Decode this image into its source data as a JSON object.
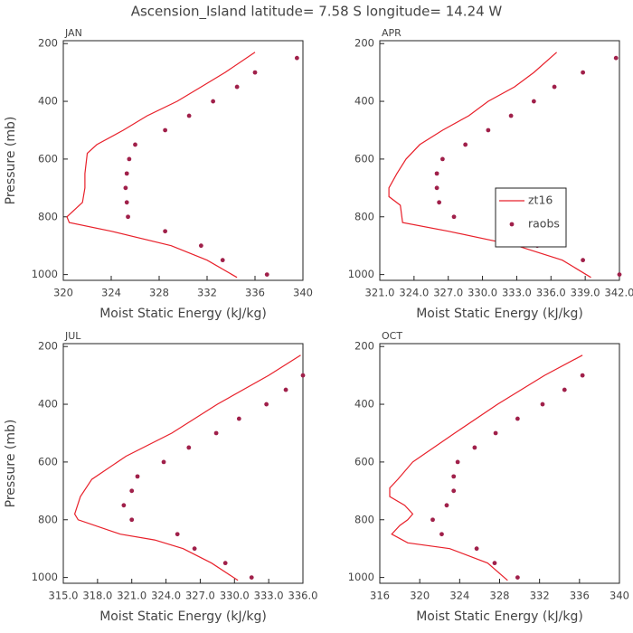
{
  "title": "Ascension_Island  latitude= 7.58 S longitude= 14.24 W",
  "chart_data": [
    {
      "type": "line",
      "title": "JAN",
      "xlabel": "Moist Static Energy (kJ/kg)",
      "ylabel": "Pressure (mb)",
      "xlim": [
        320,
        340
      ],
      "xticks": [
        320,
        324,
        328,
        332,
        336,
        340
      ],
      "ylim": [
        1020,
        190
      ],
      "yticks": [
        200,
        400,
        600,
        800,
        1000
      ],
      "series": [
        {
          "mode": "line",
          "color": "#e8202a",
          "x": [
            336,
            333.5,
            331.5,
            329.5,
            327,
            325,
            322.8,
            322,
            321.8,
            321.8,
            321.6,
            320.3,
            320.5,
            324,
            329,
            332,
            334.5
          ],
          "values": [
            230,
            300,
            350,
            400,
            450,
            500,
            550,
            580,
            650,
            700,
            750,
            800,
            820,
            850,
            900,
            950,
            1010
          ]
        },
        {
          "mode": "markers",
          "color": "#a0204a",
          "x": [
            339.5,
            336,
            334.5,
            332.5,
            330.5,
            328.5,
            326,
            325.5,
            325.3,
            325.2,
            325.3,
            325.4,
            328.5,
            331.5,
            333.3,
            337
          ],
          "values": [
            250,
            300,
            350,
            400,
            450,
            500,
            550,
            600,
            650,
            700,
            750,
            800,
            850,
            900,
            950,
            1000
          ]
        }
      ]
    },
    {
      "type": "line",
      "title": "APR",
      "xlabel": "Moist Static Energy (kJ/kg)",
      "legend": "right",
      "xlim": [
        321,
        342
      ],
      "xticks": [
        {
          "value": 321,
          "label": "321.0"
        },
        {
          "value": 324,
          "label": "324.0"
        },
        {
          "value": 327,
          "label": "327.0"
        },
        {
          "value": 330,
          "label": "330.0"
        },
        {
          "value": 333,
          "label": "333.0"
        },
        {
          "value": 336,
          "label": "336.0"
        },
        {
          "value": 339,
          "label": "339.0"
        },
        {
          "value": 342,
          "label": "342.0"
        }
      ],
      "ylim": [
        1020,
        190
      ],
      "yticks": [
        200,
        400,
        600,
        800,
        1000
      ],
      "series": [
        {
          "name": "zt16",
          "mode": "line",
          "color": "#e8202a",
          "x": [
            336.5,
            334.5,
            332.8,
            330.5,
            328.8,
            326.5,
            324.5,
            323.3,
            322.5,
            321.8,
            321.8,
            322.8,
            323,
            327,
            333,
            337,
            339.5
          ],
          "values": [
            230,
            300,
            350,
            400,
            450,
            500,
            550,
            600,
            650,
            700,
            730,
            760,
            820,
            850,
            900,
            950,
            1010
          ]
        },
        {
          "name": "raobs",
          "mode": "markers",
          "color": "#a0204a",
          "x": [
            341.7,
            338.8,
            336.3,
            334.5,
            332.5,
            330.5,
            328.5,
            326.5,
            326,
            326,
            326.2,
            327.5,
            331.5,
            334.8,
            338.8,
            342
          ],
          "values": [
            250,
            300,
            350,
            400,
            450,
            500,
            550,
            600,
            650,
            700,
            750,
            800,
            850,
            900,
            950,
            1000
          ]
        }
      ]
    },
    {
      "type": "line",
      "title": "JUL",
      "xlabel": "Moist Static Energy (kJ/kg)",
      "ylabel": "Pressure (mb)",
      "xlim": [
        315,
        336
      ],
      "xticks": [
        {
          "value": 315,
          "label": "315.0"
        },
        {
          "value": 318,
          "label": "318.0"
        },
        {
          "value": 321,
          "label": "321.0"
        },
        {
          "value": 324,
          "label": "324.0"
        },
        {
          "value": 327,
          "label": "327.0"
        },
        {
          "value": 330,
          "label": "330.0"
        },
        {
          "value": 333,
          "label": "333.0"
        },
        {
          "value": 336,
          "label": "336.0"
        }
      ],
      "ylim": [
        1020,
        190
      ],
      "yticks": [
        200,
        400,
        600,
        800,
        1000
      ],
      "series": [
        {
          "mode": "line",
          "color": "#e8202a",
          "x": [
            335.8,
            333,
            328.5,
            324.5,
            320.5,
            317.5,
            316.5,
            316,
            316.3,
            320,
            323,
            325.5,
            328,
            330.3
          ],
          "values": [
            230,
            300,
            400,
            500,
            580,
            660,
            720,
            780,
            800,
            850,
            870,
            900,
            950,
            1010
          ]
        },
        {
          "mode": "markers",
          "color": "#a0204a",
          "x": [
            336,
            334.5,
            332.8,
            330.4,
            328.4,
            326,
            323.8,
            321.5,
            321,
            320.3,
            321,
            325,
            326.5,
            329.2,
            331.5
          ],
          "values": [
            300,
            350,
            400,
            450,
            500,
            550,
            600,
            650,
            700,
            750,
            800,
            850,
            900,
            950,
            1000
          ]
        }
      ]
    },
    {
      "type": "line",
      "title": "OCT",
      "xlabel": "Moist Static Energy (kJ/kg)",
      "xlim": [
        316,
        340
      ],
      "xticks": [
        316,
        320,
        324,
        328,
        332,
        336,
        340
      ],
      "ylim": [
        1020,
        190
      ],
      "yticks": [
        200,
        400,
        600,
        800,
        1000
      ],
      "series": [
        {
          "mode": "line",
          "color": "#e8202a",
          "x": [
            336.3,
            332.5,
            327.8,
            323.5,
            319.3,
            317.8,
            317,
            317,
            318.5,
            319.3,
            318.8,
            318,
            317.2,
            318.8,
            323,
            326.8,
            328.8
          ],
          "values": [
            230,
            300,
            400,
            500,
            600,
            660,
            690,
            720,
            750,
            780,
            800,
            820,
            850,
            880,
            900,
            950,
            1010
          ]
        },
        {
          "mode": "markers",
          "color": "#a0204a",
          "x": [
            336.3,
            334.5,
            332.3,
            329.8,
            327.6,
            325.5,
            323.8,
            323.4,
            323.4,
            322.7,
            321.3,
            322.2,
            325.7,
            327.5,
            329.8
          ],
          "values": [
            300,
            350,
            400,
            450,
            500,
            550,
            600,
            650,
            700,
            750,
            800,
            850,
            900,
            950,
            1000
          ]
        }
      ]
    }
  ]
}
